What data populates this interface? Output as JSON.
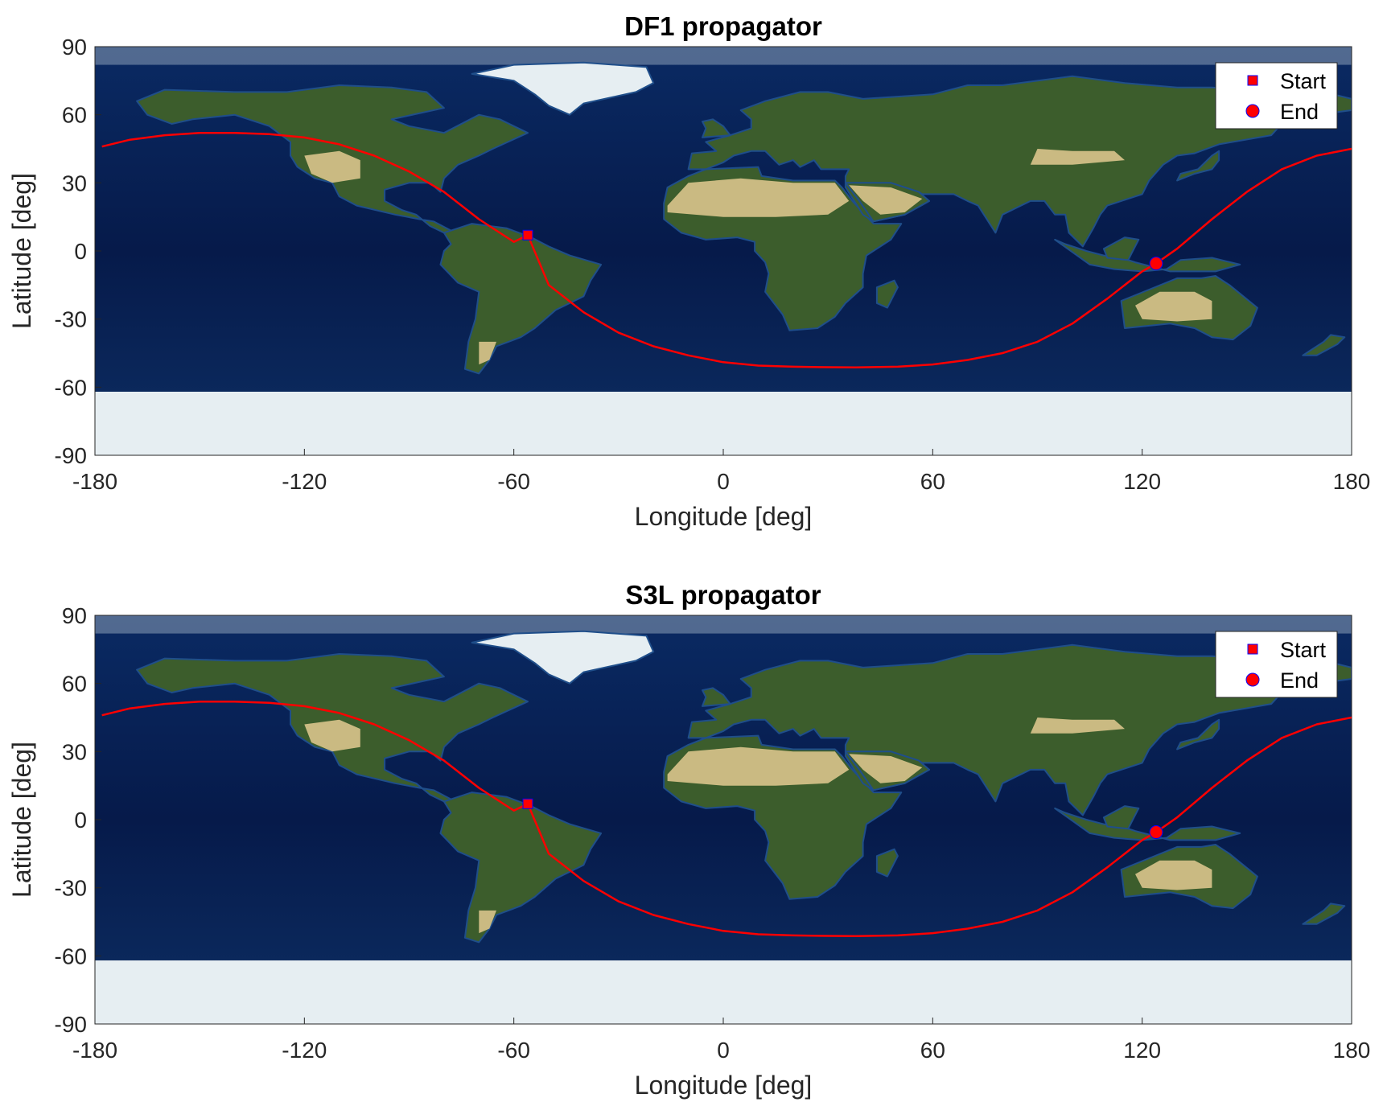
{
  "colors": {
    "track": "#ff0000",
    "marker_edge": "#0000ff",
    "ocean_deep": "#061a4a",
    "ocean_shelf": "#1f4e8a",
    "land_green": "#3c5d2c",
    "land_desert": "#d9c48c",
    "ice": "#e6eef2"
  },
  "background_image": "blue-marble-world-map",
  "chart_data": [
    {
      "type": "line",
      "title": "DF1 propagator",
      "xlabel": "Longitude [deg]",
      "ylabel": "Latitude [deg]",
      "xlim": [
        -180,
        180
      ],
      "ylim": [
        -90,
        90
      ],
      "xticks": [
        -180,
        -120,
        -60,
        0,
        60,
        120,
        180
      ],
      "yticks": [
        90,
        60,
        30,
        0,
        -30,
        -60,
        -90
      ],
      "grid": false,
      "legend_position": "top-right",
      "legend": [
        "Start",
        "End"
      ],
      "series": [
        {
          "x": [
            -178,
            -170,
            -160,
            -150,
            -140,
            -130,
            -120,
            -110,
            -100,
            -90,
            -80,
            -70,
            -60,
            -56,
            -50,
            -40,
            -30,
            -20,
            -10,
            0,
            10,
            20,
            30,
            38,
            50,
            60,
            70,
            80,
            90,
            100,
            110,
            120,
            124,
            130,
            140,
            150,
            160,
            170,
            180
          ],
          "y": [
            46,
            49,
            51,
            52,
            52,
            51.5,
            50,
            47,
            42,
            35,
            26,
            14,
            4,
            7,
            -15,
            -27,
            -36,
            -42,
            -46,
            -49,
            -50.5,
            -51,
            -51.2,
            -51.3,
            -51,
            -50,
            -48,
            -45,
            -40,
            -32,
            -21,
            -9,
            -5.5,
            1,
            14,
            26,
            36,
            42,
            45
          ]
        }
      ],
      "start_point": {
        "label": "Start",
        "x": -56,
        "y": 7
      },
      "end_point": {
        "label": "End",
        "x": 124,
        "y": -5.5
      }
    },
    {
      "type": "line",
      "title": "S3L propagator",
      "xlabel": "Longitude [deg]",
      "ylabel": "Latitude [deg]",
      "xlim": [
        -180,
        180
      ],
      "ylim": [
        -90,
        90
      ],
      "xticks": [
        -180,
        -120,
        -60,
        0,
        60,
        120,
        180
      ],
      "yticks": [
        90,
        60,
        30,
        0,
        -30,
        -60,
        -90
      ],
      "grid": false,
      "legend_position": "top-right",
      "legend": [
        "Start",
        "End"
      ],
      "series": [
        {
          "x": [
            -178,
            -170,
            -160,
            -150,
            -140,
            -130,
            -120,
            -110,
            -100,
            -90,
            -80,
            -70,
            -60,
            -56,
            -50,
            -40,
            -30,
            -20,
            -10,
            0,
            10,
            20,
            30,
            38,
            50,
            60,
            70,
            80,
            90,
            100,
            110,
            120,
            124,
            130,
            140,
            150,
            160,
            170,
            180
          ],
          "y": [
            46,
            49,
            51,
            52,
            52,
            51.5,
            50,
            47,
            42,
            35,
            26,
            14,
            4,
            7,
            -15,
            -27,
            -36,
            -42,
            -46,
            -49,
            -50.5,
            -51,
            -51.2,
            -51.3,
            -51,
            -50,
            -48,
            -45,
            -40,
            -32,
            -21,
            -9,
            -5.5,
            1,
            14,
            26,
            36,
            42,
            45
          ]
        }
      ],
      "start_point": {
        "label": "Start",
        "x": -56,
        "y": 7
      },
      "end_point": {
        "label": "End",
        "x": 124,
        "y": -5.5
      }
    }
  ]
}
